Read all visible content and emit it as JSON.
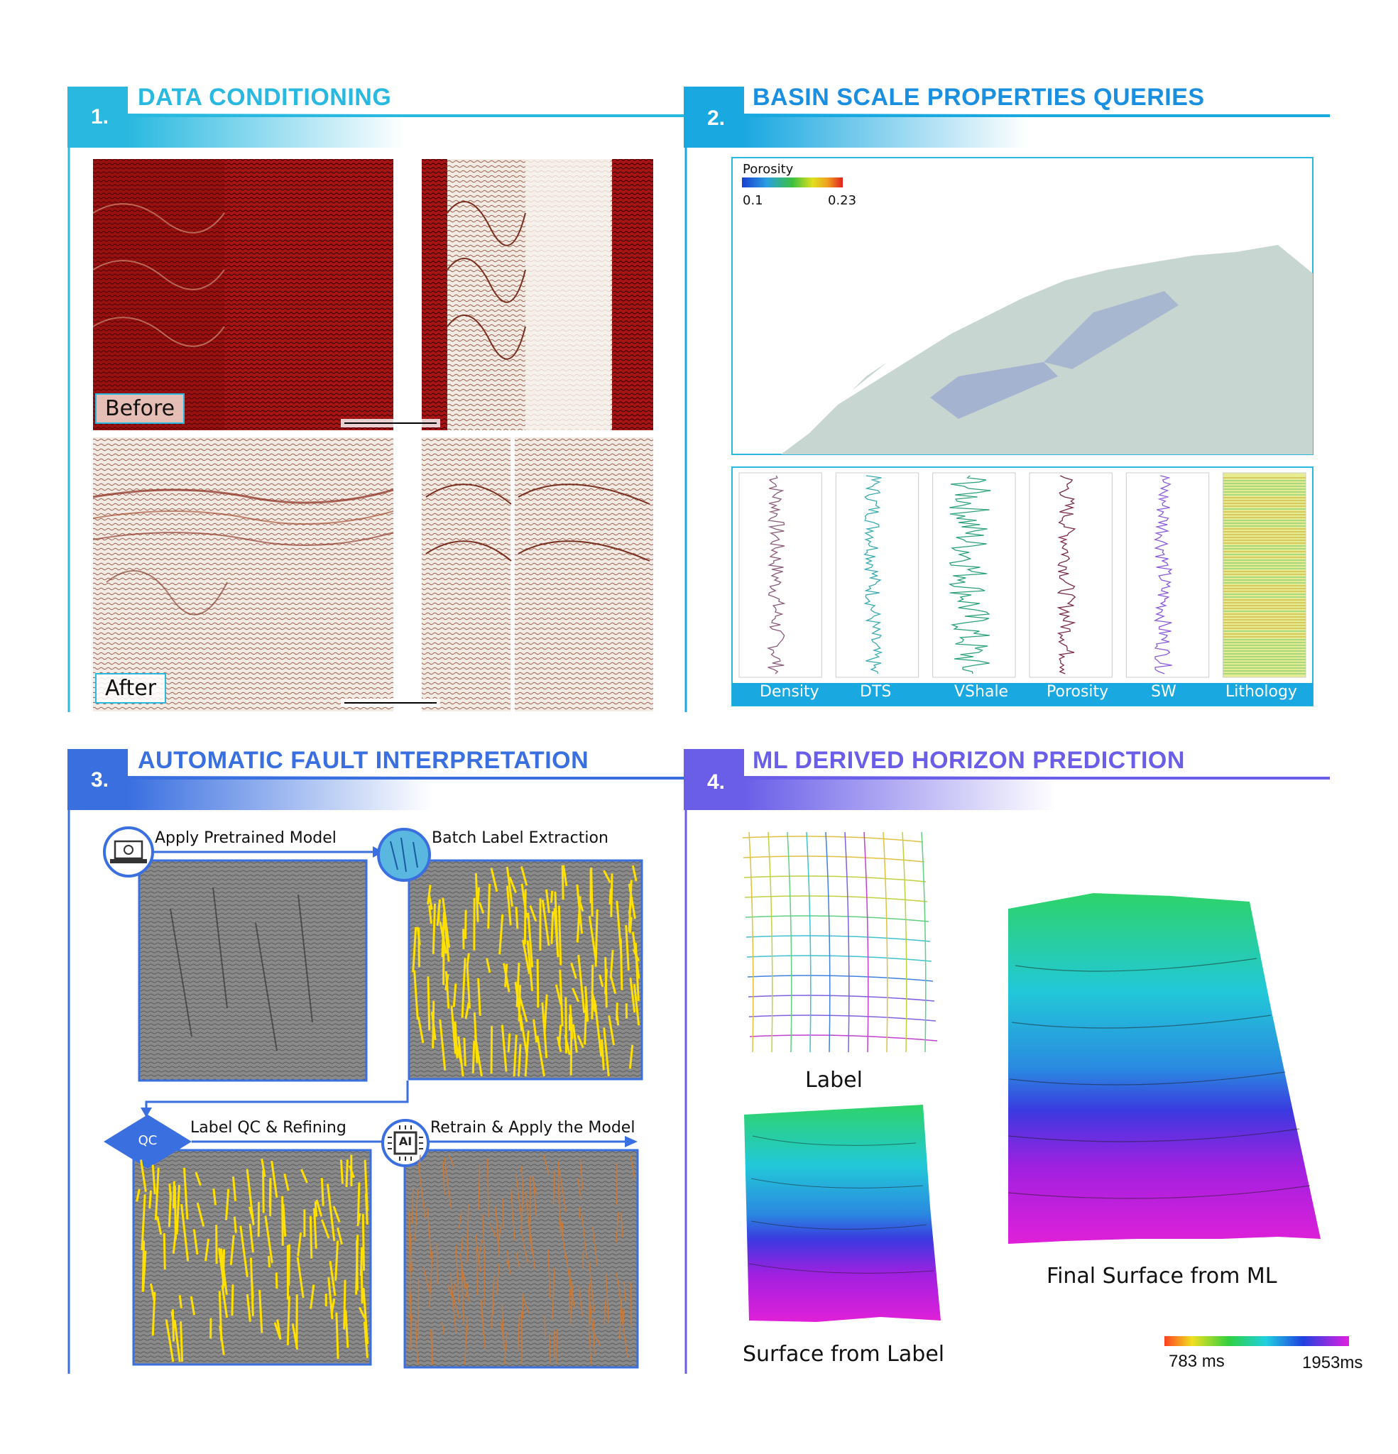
{
  "sections": {
    "s1": {
      "number": "1.",
      "title": "DATA CONDITIONING",
      "color": "#29b9e0"
    },
    "s2": {
      "number": "2.",
      "title": "BASIN SCALE PROPERTIES QUERIES",
      "color": "#1aa8e0"
    },
    "s3": {
      "number": "3.",
      "title": "AUTOMATIC FAULT INTERPRETATION",
      "color": "#3a6fe0"
    },
    "s4": {
      "number": "4.",
      "title": "ML DERIVED HORIZON PREDICTION",
      "color": "#6a5ee8"
    }
  },
  "conditioning": {
    "before_label": "Before",
    "after_label": "After"
  },
  "map": {
    "legend_title": "Porosity",
    "legend_min": "0.1",
    "legend_max": "0.23",
    "legend_colors": [
      "#1a3fd0",
      "#2aa0e0",
      "#3cc040",
      "#e0e020",
      "#f0a020",
      "#e02020"
    ]
  },
  "well_logs": {
    "tracks": [
      "Density",
      "DTS",
      "VShale",
      "Porosity",
      "SW",
      "Lithology"
    ],
    "track_colors": [
      "#8a5b7a",
      "#3aaab0",
      "#2aa07a",
      "#7a2a4a",
      "#8a5ad8",
      "#c8d85a"
    ]
  },
  "fault_workflow": {
    "steps": [
      {
        "label": "Apply Pretrained Model",
        "icon": "laptop-icon"
      },
      {
        "label": "Batch Label Extraction",
        "icon": "fault-volume-icon"
      },
      {
        "label": "Label QC & Refining",
        "icon": "qc-diamond-icon",
        "badge": "QC"
      },
      {
        "label": "Retrain & Apply the Model",
        "icon": "ai-chip-icon",
        "badge": "AI"
      }
    ]
  },
  "horizon": {
    "label_caption": "Label",
    "surface_label_caption": "Surface from Label",
    "final_caption": "Final Surface from ML",
    "colorbar_min": "783 ms",
    "colorbar_max": "1953ms"
  }
}
